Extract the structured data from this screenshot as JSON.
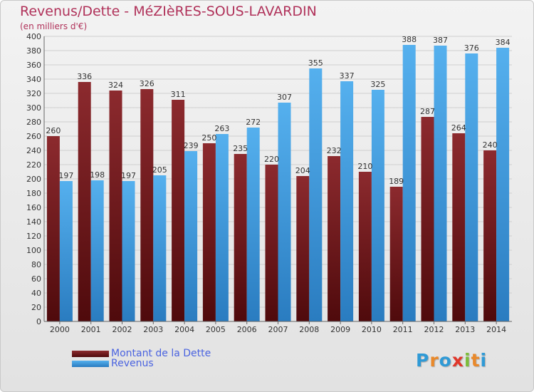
{
  "header": {
    "title": "Revenus/Dette - MéZIèRES-SOUS-LAVARDIN",
    "subtitle": "(en milliers d'€)"
  },
  "legend": {
    "debt_label": "Montant de la Dette",
    "revenue_label": "Revenus"
  },
  "logo": {
    "text": "Proxiti",
    "letters": [
      "P",
      "r",
      "o",
      "x",
      "i",
      "t",
      "i"
    ],
    "colors": [
      "#2f9ad6",
      "#e9892b",
      "#2f9ad6",
      "#e0362a",
      "#7dbd3a",
      "#e9892b",
      "#2f9ad6"
    ]
  },
  "colors": {
    "debt": "#7a1e22",
    "revenue": "#4aa3e3",
    "grid": "#cfcfcf",
    "text": "#333333"
  },
  "chart_data": {
    "type": "bar",
    "categories": [
      "2000",
      "2001",
      "2002",
      "2003",
      "2004",
      "2005",
      "2006",
      "2007",
      "2008",
      "2009",
      "2010",
      "2011",
      "2012",
      "2013",
      "2014"
    ],
    "series": [
      {
        "name": "Montant de la Dette",
        "values": [
          260,
          336,
          324,
          326,
          311,
          250,
          235,
          220,
          204,
          232,
          210,
          189,
          287,
          264,
          240
        ]
      },
      {
        "name": "Revenus",
        "values": [
          197,
          198,
          197,
          205,
          239,
          263,
          272,
          307,
          355,
          337,
          325,
          388,
          387,
          376,
          384
        ]
      }
    ],
    "ylim": [
      0,
      400
    ],
    "ytick_step": 20,
    "grid": true,
    "legend_position": "bottom-left"
  }
}
